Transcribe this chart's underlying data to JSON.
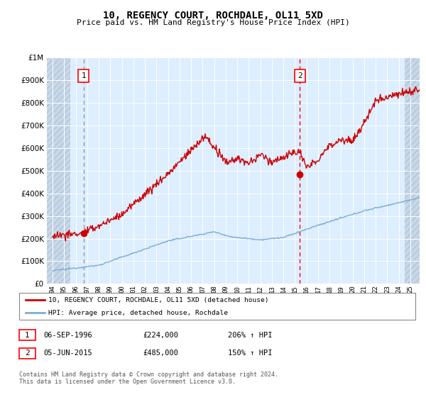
{
  "title": "10, REGENCY COURT, ROCHDALE, OL11 5XD",
  "subtitle": "Price paid vs. HM Land Registry's House Price Index (HPI)",
  "ylim": [
    0,
    1000000
  ],
  "yticks": [
    0,
    100000,
    200000,
    300000,
    400000,
    500000,
    600000,
    700000,
    800000,
    900000,
    1000000
  ],
  "ytick_labels": [
    "£0",
    "£100K",
    "£200K",
    "£300K",
    "£400K",
    "£500K",
    "£600K",
    "£700K",
    "£800K",
    "£900K",
    "£1M"
  ],
  "xlim_start": 1993.5,
  "xlim_end": 2025.8,
  "xticks": [
    1994,
    1995,
    1996,
    1997,
    1998,
    1999,
    2000,
    2001,
    2002,
    2003,
    2004,
    2005,
    2006,
    2007,
    2008,
    2009,
    2010,
    2011,
    2012,
    2013,
    2014,
    2015,
    2016,
    2017,
    2018,
    2019,
    2020,
    2021,
    2022,
    2023,
    2024,
    2025
  ],
  "xtick_labels": [
    "94",
    "95",
    "96",
    "97",
    "98",
    "99",
    "00",
    "01",
    "02",
    "03",
    "04",
    "05",
    "06",
    "07",
    "08",
    "09",
    "10",
    "11",
    "12",
    "13",
    "14",
    "15",
    "16",
    "17",
    "18",
    "19",
    "20",
    "21",
    "22",
    "23",
    "24",
    "25"
  ],
  "sale1_year": 1996.68,
  "sale1_price": 224000,
  "sale1_label": "1",
  "sale2_year": 2015.42,
  "sale2_price": 485000,
  "sale2_label": "2",
  "line_color": "#cc0000",
  "hpi_color": "#7aafd4",
  "bg_plot": "#ddeeff",
  "legend_label1": "10, REGENCY COURT, ROCHDALE, OL11 5XD (detached house)",
  "legend_label2": "HPI: Average price, detached house, Rochdale",
  "footer": "Contains HM Land Registry data © Crown copyright and database right 2024.\nThis data is licensed under the Open Government Licence v3.0.",
  "table_row1": [
    "1",
    "06-SEP-1996",
    "£224,000",
    "206% ↑ HPI"
  ],
  "table_row2": [
    "2",
    "05-JUN-2015",
    "£485,000",
    "150% ↑ HPI"
  ]
}
